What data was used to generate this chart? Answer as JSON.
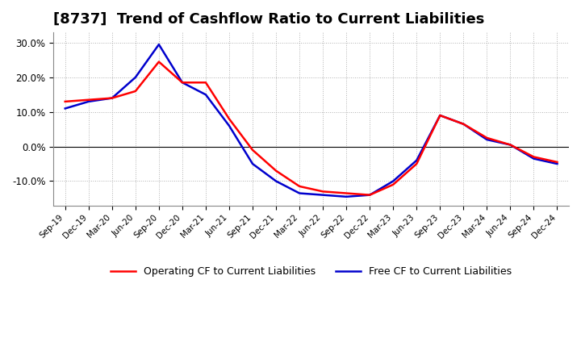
{
  "title": "[8737]  Trend of Cashflow Ratio to Current Liabilities",
  "x_labels": [
    "Sep-19",
    "Dec-19",
    "Mar-20",
    "Jun-20",
    "Sep-20",
    "Dec-20",
    "Mar-21",
    "Jun-21",
    "Sep-21",
    "Dec-21",
    "Mar-22",
    "Jun-22",
    "Sep-22",
    "Dec-22",
    "Mar-23",
    "Jun-23",
    "Sep-23",
    "Dec-23",
    "Mar-24",
    "Jun-24",
    "Sep-24",
    "Dec-24"
  ],
  "operating_cf": [
    13.0,
    13.5,
    14.0,
    16.0,
    24.5,
    18.5,
    18.5,
    8.0,
    -1.0,
    -7.0,
    -11.5,
    -13.0,
    -13.5,
    -14.0,
    -11.0,
    -5.0,
    9.0,
    6.5,
    2.5,
    0.5,
    -3.0,
    -4.5
  ],
  "free_cf": [
    11.0,
    13.0,
    14.0,
    20.0,
    29.5,
    18.5,
    15.0,
    6.0,
    -5.0,
    -10.0,
    -13.5,
    -14.0,
    -14.5,
    -14.0,
    -10.0,
    -4.0,
    9.0,
    6.5,
    2.0,
    0.5,
    -3.5,
    -5.0
  ],
  "operating_cf_label": "Operating CF to Current Liabilities",
  "free_cf_label": "Free CF to Current Liabilities",
  "operating_color": "#ff0000",
  "free_color": "#0000cd",
  "ylim": [
    -17,
    33
  ],
  "yticks": [
    -10.0,
    0.0,
    10.0,
    20.0,
    30.0
  ],
  "background_color": "#ffffff",
  "grid_color": "#b0b0b0",
  "title_fontsize": 13,
  "line_width": 1.8
}
